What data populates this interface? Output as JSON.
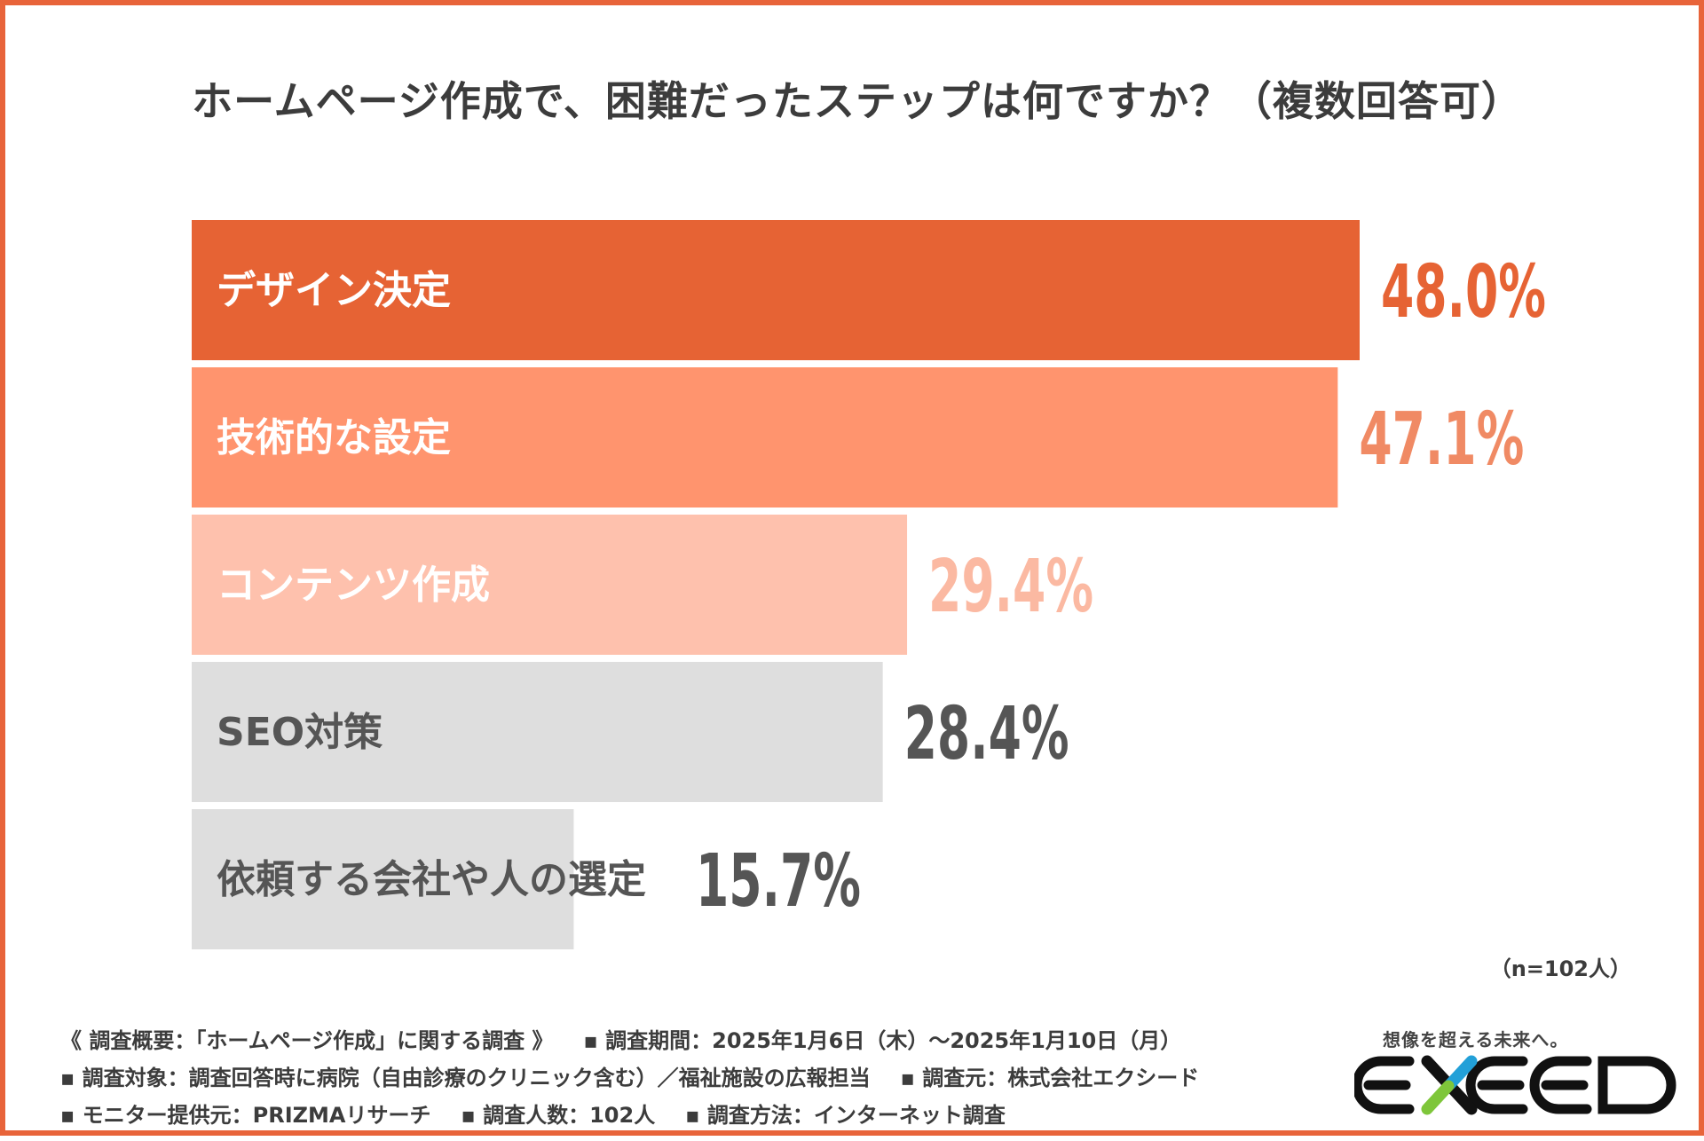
{
  "chart_data": {
    "type": "bar",
    "orientation": "horizontal",
    "title": "ホームページ作成で、困難だったステップは何ですか？（複数回答可）",
    "unit": "%",
    "categories": [
      "デザイン決定",
      "技術的な設定",
      "コンテンツ作成",
      "SEO対策",
      "依頼する会社や人の選定"
    ],
    "values": [
      48.0,
      47.1,
      29.4,
      28.4,
      15.7
    ],
    "value_labels": [
      "48.0%",
      "47.1%",
      "29.4%",
      "28.4%",
      "15.7%"
    ],
    "bar_colors": [
      "#e66334",
      "#ff946e",
      "#fec1ad",
      "#dedede",
      "#dedede"
    ],
    "category_label_colors": [
      "#ffffff",
      "#ffffff",
      "#ffffff",
      "#555555",
      "#555555"
    ],
    "value_label_colors": [
      "#e66334",
      "#f08a64",
      "#fbb9a2",
      "#555555",
      "#555555"
    ],
    "xlim": [
      0,
      48.0
    ],
    "note": "（n=102人）"
  },
  "footer": {
    "lines": [
      [
        "《 調査概要：「ホームページ作成」に関する調査 》",
        "▪ 調査期間：2025年1月6日（木）〜2025年1月10日（月）"
      ],
      [
        "▪ 調査対象：調査回答時に病院（自由診療のクリニック含む）／福祉施設の広報担当",
        "▪ 調査元：株式会社エクシード"
      ],
      [
        "▪ モニター提供元：PRIZMAリサーチ",
        "▪ 調査人数：102人",
        "▪ 調査方法：インターネット調査"
      ]
    ]
  },
  "logo": {
    "tagline": "想像を超える未来へ。",
    "wordmark": "EXEED",
    "accent_color": "#22a0d8",
    "accent_color_2": "#7ec63a"
  }
}
